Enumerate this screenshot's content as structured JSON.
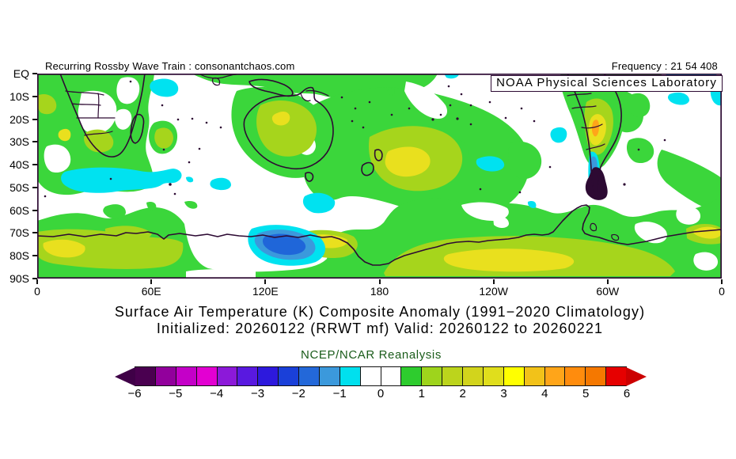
{
  "header": {
    "left": "Recurring Rossby Wave Train : consonantchaos.com",
    "right": "Frequency : 21 54 408"
  },
  "map": {
    "overlay_label": "NOAA Physical Sciences Laboratory",
    "y_ticks": [
      "EQ",
      "10S",
      "20S",
      "30S",
      "40S",
      "50S",
      "60S",
      "70S",
      "80S",
      "90S"
    ],
    "x_ticks": [
      "0",
      "60E",
      "120E",
      "180",
      "120W",
      "60W",
      "0"
    ],
    "palette": {
      "green": "#3bd63b",
      "yellow_green": "#a6d51c",
      "yellow": "#e9e01e",
      "orange": "#ffa519",
      "cyan": "#00e2f0",
      "blue_mid": "#3b99dc",
      "blue_deep": "#1f66d9",
      "coast": "#2d0a33"
    }
  },
  "titles": {
    "line1": "Surface Air Temperature (K) Composite Anomaly (1991−2020 Climatology)",
    "line2": "Initialized: 20260122 (RRWT mf) Valid: 20260122 to 20260221"
  },
  "colorbar": {
    "label": "NCEP/NCAR Reanalysis",
    "label_color": "#1a5c1a",
    "tick_labels": [
      "−6",
      "−5",
      "−4",
      "−3",
      "−2",
      "−1",
      "0",
      "1",
      "2",
      "3",
      "4",
      "5",
      "6"
    ],
    "box_colors": [
      "#4a0050",
      "#92009c",
      "#c400c8",
      "#e300d2",
      "#8c19d9",
      "#5919e0",
      "#2d19dd",
      "#1a40d9",
      "#2368d9",
      "#3b99dc",
      "#00e0ee",
      "#ffffff",
      "#ffffff",
      "#2ecc2e",
      "#9ed41c",
      "#bcd41c",
      "#d2d41c",
      "#e0de1c",
      "#ffff00",
      "#f2c219",
      "#ffa519",
      "#ff8c0d",
      "#f57800",
      "#e60000"
    ],
    "arrow_left_color": "#3f0047",
    "arrow_right_color": "#cc0000"
  },
  "chart_data": {
    "type": "heatmap",
    "title": "Surface Air Temperature (K) Composite Anomaly (1991−2020 Climatology)",
    "subtitle": "Initialized: 20260122 (RRWT mf) Valid: 20260122 to 20260221",
    "source_label": "NCEP/NCAR Reanalysis",
    "units": "K",
    "projection": "cylindrical, Southern Hemisphere",
    "x_axis": {
      "ticks": [
        "0",
        "60E",
        "120E",
        "180",
        "120W",
        "60W",
        "0"
      ],
      "range_deg_lon": [
        0,
        360
      ]
    },
    "y_axis": {
      "ticks": [
        "EQ",
        "10S",
        "20S",
        "30S",
        "40S",
        "50S",
        "60S",
        "70S",
        "80S",
        "90S"
      ],
      "range_deg_lat": [
        0,
        -90
      ]
    },
    "colorbar": {
      "min": -6,
      "max": 6,
      "step": 0.5,
      "tick_values": [
        -6,
        -5,
        -4,
        -3,
        -2,
        -1,
        0,
        1,
        2,
        3,
        4,
        5,
        6
      ],
      "open_ended": true
    },
    "notable_anomalies": [
      {
        "region": "Southern Africa and adjacent oceans",
        "value_k": 1
      },
      {
        "region": "Indian Ocean ~45-50S, 10-60E (elongated cool band)",
        "value_k": -1
      },
      {
        "region": "Australia interior (NW spot)",
        "value_k": 2.5
      },
      {
        "region": "Tasman Sea / east of New Zealand ~40S",
        "value_k": 3
      },
      {
        "region": "Northern Argentina ~25-30S (warm core with orange streak)",
        "value_k": 4
      },
      {
        "region": "Southern Chile coast / Patagonia ~40-55S",
        "value_k": -2
      },
      {
        "region": "Antarctic coast ~75-80S near 110-130E (blue core)",
        "value_k": -2.5
      },
      {
        "region": "Antarctica interior band 75-85S (broad warm band)",
        "value_k": 3
      },
      {
        "region": "Widespread Southern Ocean 60-70S",
        "value_k": 1
      }
    ]
  }
}
